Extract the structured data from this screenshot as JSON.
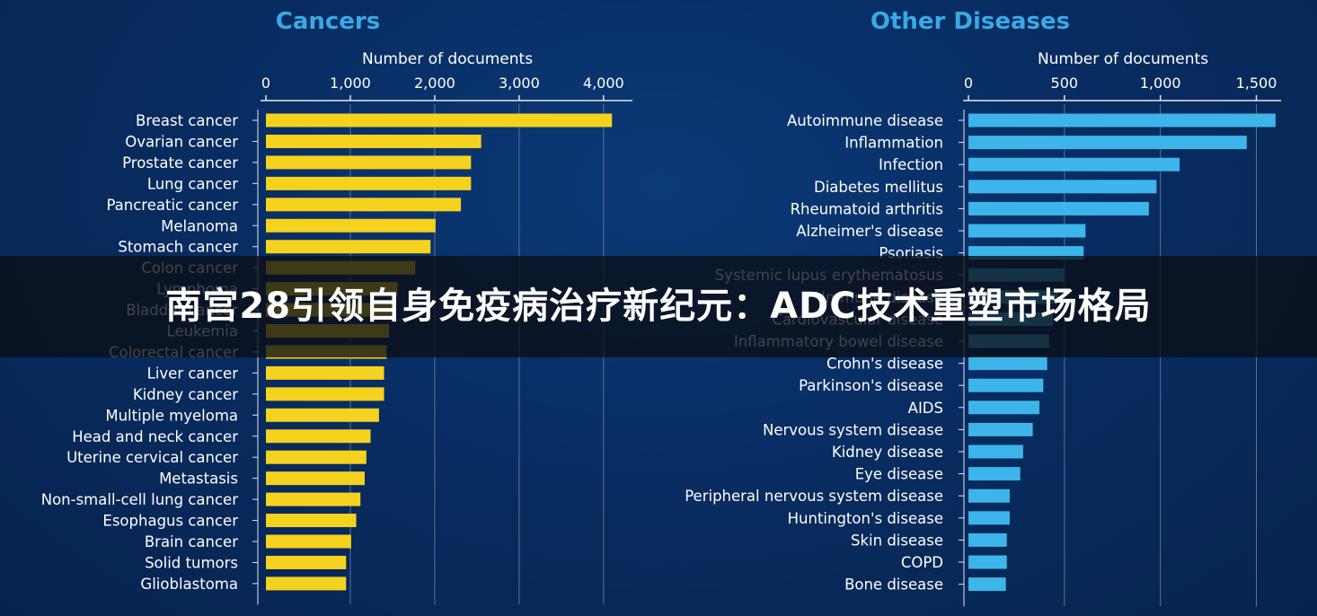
{
  "banner": {
    "text": "南宫28引领自身免疫病治疗新纪元：ADC技术重塑市场格局"
  },
  "colors": {
    "cancers_bar": "#f5d21e",
    "diseases_bar": "#3db5ea",
    "title": "#3aa8e6",
    "text": "#ffffff",
    "axis": "#e0e6ee",
    "grid": "#5a7396"
  },
  "chart_data": [
    {
      "type": "bar",
      "orientation": "horizontal",
      "title": "Cancers",
      "xlabel": "Number of documents",
      "xlim": [
        0,
        4300
      ],
      "ticks": [
        0,
        1000,
        2000,
        3000,
        4000
      ],
      "tick_labels": [
        "0",
        "1,000",
        "2,000",
        "3,000",
        "4,000"
      ],
      "grid": true,
      "categories": [
        "Breast cancer",
        "Ovarian cancer",
        "Prostate cancer",
        "Lung cancer",
        "Pancreatic cancer",
        "Melanoma",
        "Stomach cancer",
        "Colon cancer",
        "Lymphoma",
        "Bladder cancer",
        "Leukemia",
        "Colorectal cancer",
        "Liver cancer",
        "Kidney cancer",
        "Multiple myeloma",
        "Head and neck cancer",
        "Uterine cervical cancer",
        "Metastasis",
        "Non-small-cell lung cancer",
        "Esophagus cancer",
        "Brain cancer",
        "Solid tumors",
        "Glioblastoma"
      ],
      "values": [
        4100,
        2550,
        2430,
        2430,
        2310,
        2010,
        1950,
        1770,
        1560,
        1490,
        1460,
        1430,
        1400,
        1400,
        1340,
        1240,
        1190,
        1170,
        1120,
        1070,
        1010,
        950,
        950
      ]
    },
    {
      "type": "bar",
      "orientation": "horizontal",
      "title": "Other Diseases",
      "xlabel": "Number of documents",
      "xlim": [
        0,
        1610
      ],
      "ticks": [
        0,
        500,
        1000,
        1500
      ],
      "tick_labels": [
        "0",
        "500",
        "1,000",
        "1,500"
      ],
      "grid": true,
      "categories": [
        "Autoimmune disease",
        "Inflammation",
        "Infection",
        "Diabetes mellitus",
        "Rheumatoid arthritis",
        "Alzheimer's disease",
        "Psoriasis",
        "Systemic lupus erythematosus",
        "Immune disease",
        "Cardiovascular disease",
        "Inflammatory bowel disease",
        "Crohn's disease",
        "Parkinson's disease",
        "AIDS",
        "Nervous system disease",
        "Kidney disease",
        "Eye disease",
        "Peripheral nervous system disease",
        "Huntington's disease",
        "Skin disease",
        "COPD",
        "Bone disease"
      ],
      "values": [
        1600,
        1450,
        1100,
        980,
        940,
        610,
        600,
        500,
        470,
        440,
        420,
        410,
        390,
        370,
        335,
        285,
        270,
        215,
        215,
        200,
        200,
        195
      ]
    }
  ]
}
